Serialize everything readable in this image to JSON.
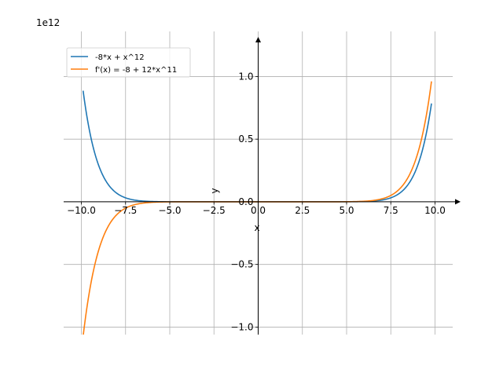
{
  "chart_data": {
    "type": "line",
    "title": "",
    "xlabel": "x",
    "ylabel": "y",
    "y_offset_label": "1e12",
    "xlim": [
      -11.0,
      11.0
    ],
    "ylim": [
      -1.06,
      1.36
    ],
    "xticks": [
      -10.0,
      -7.5,
      -5.0,
      -2.5,
      0.0,
      2.5,
      5.0,
      7.5,
      10.0
    ],
    "xtick_labels": [
      "−10.0",
      "−7.5",
      "−5.0",
      "−2.5",
      "0.0",
      "2.5",
      "5.0",
      "7.5",
      "10.0"
    ],
    "yticks": [
      -1.0,
      -0.5,
      0.0,
      0.5,
      1.0
    ],
    "ytick_labels": [
      "−1.0",
      "−0.5",
      "0.0",
      "0.5",
      "1.0"
    ],
    "grid": true,
    "legend_position": "top-left",
    "x_range": [
      -9.9,
      9.8
    ],
    "series": [
      {
        "name": "-8*x + x^12",
        "color": "#1f77b4",
        "expr": "-8*x + x^12"
      },
      {
        "name": "f'(x) = -8 + 12*x^11",
        "color": "#ff7f0e",
        "expr": "-8 + 12*x^11"
      }
    ]
  }
}
